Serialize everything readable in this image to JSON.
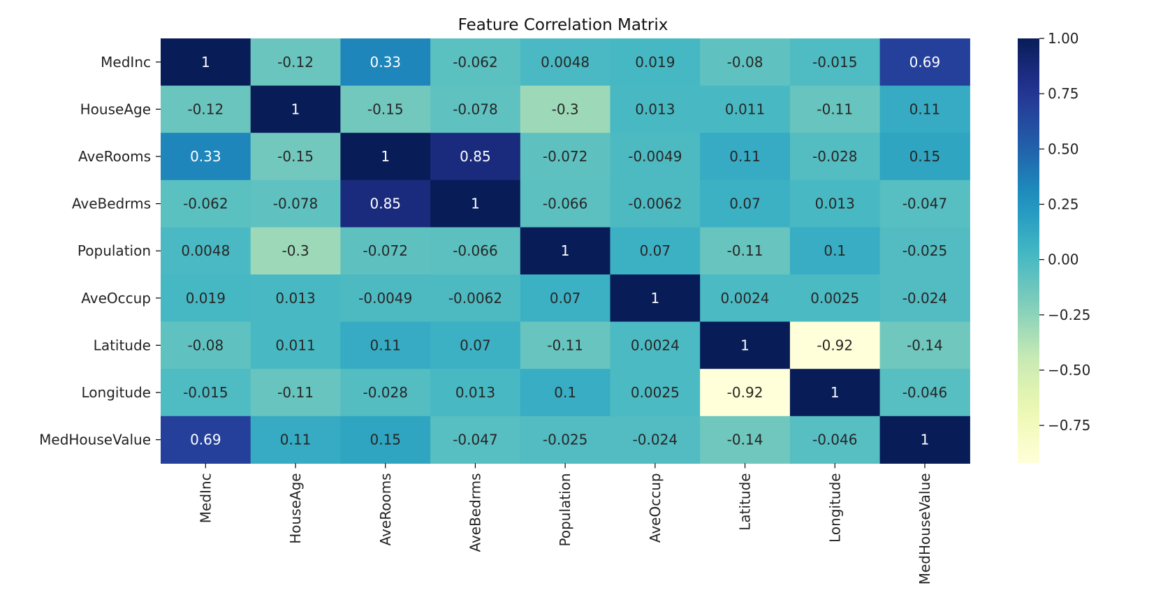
{
  "chart_data": {
    "type": "heatmap",
    "title": "Feature Correlation Matrix",
    "xlabel": "",
    "ylabel": "",
    "rows": [
      "MedInc",
      "HouseAge",
      "AveRooms",
      "AveBedrms",
      "Population",
      "AveOccup",
      "Latitude",
      "Longitude",
      "MedHouseValue"
    ],
    "columns": [
      "MedInc",
      "HouseAge",
      "AveRooms",
      "AveBedrms",
      "Population",
      "AveOccup",
      "Latitude",
      "Longitude",
      "MedHouseValue"
    ],
    "values": [
      [
        1,
        -0.12,
        0.33,
        -0.062,
        0.0048,
        0.019,
        -0.08,
        -0.015,
        0.69
      ],
      [
        -0.12,
        1,
        -0.15,
        -0.078,
        -0.3,
        0.013,
        0.011,
        -0.11,
        0.11
      ],
      [
        0.33,
        -0.15,
        1,
        0.85,
        -0.072,
        -0.0049,
        0.11,
        -0.028,
        0.15
      ],
      [
        -0.062,
        -0.078,
        0.85,
        1,
        -0.066,
        -0.0062,
        0.07,
        0.013,
        -0.047
      ],
      [
        0.0048,
        -0.3,
        -0.072,
        -0.066,
        1,
        0.07,
        -0.11,
        0.1,
        -0.025
      ],
      [
        0.019,
        0.013,
        -0.0049,
        -0.0062,
        0.07,
        1,
        0.0024,
        0.0025,
        -0.024
      ],
      [
        -0.08,
        0.011,
        0.11,
        0.07,
        -0.11,
        0.0024,
        1,
        -0.92,
        -0.14
      ],
      [
        -0.015,
        -0.11,
        -0.028,
        0.013,
        0.1,
        0.0025,
        -0.92,
        1,
        -0.046
      ],
      [
        0.69,
        0.11,
        0.15,
        -0.047,
        -0.025,
        -0.024,
        -0.14,
        -0.046,
        1
      ]
    ],
    "cell_labels": [
      [
        "1",
        "-0.12",
        "0.33",
        "-0.062",
        "0.0048",
        "0.019",
        "-0.08",
        "-0.015",
        "0.69"
      ],
      [
        "-0.12",
        "1",
        "-0.15",
        "-0.078",
        "-0.3",
        "0.013",
        "0.011",
        "-0.11",
        "0.11"
      ],
      [
        "0.33",
        "-0.15",
        "1",
        "0.85",
        "-0.072",
        "-0.0049",
        "0.11",
        "-0.028",
        "0.15"
      ],
      [
        "-0.062",
        "-0.078",
        "0.85",
        "1",
        "-0.066",
        "-0.0062",
        "0.07",
        "0.013",
        "-0.047"
      ],
      [
        "0.0048",
        "-0.3",
        "-0.072",
        "-0.066",
        "1",
        "0.07",
        "-0.11",
        "0.1",
        "-0.025"
      ],
      [
        "0.019",
        "0.013",
        "-0.0049",
        "-0.0062",
        "0.07",
        "1",
        "0.0024",
        "0.0025",
        "-0.024"
      ],
      [
        "-0.08",
        "0.011",
        "0.11",
        "0.07",
        "-0.11",
        "0.0024",
        "1",
        "-0.92",
        "-0.14"
      ],
      [
        "-0.015",
        "-0.11",
        "-0.028",
        "0.013",
        "0.1",
        "0.0025",
        "-0.92",
        "1",
        "-0.046"
      ],
      [
        "0.69",
        "0.11",
        "0.15",
        "-0.047",
        "-0.025",
        "-0.024",
        "-0.14",
        "-0.046",
        "1"
      ]
    ],
    "colormap": "YlGnBu",
    "color_range": [
      -0.92,
      1
    ],
    "colorbar_ticks": [
      1.0,
      0.75,
      0.5,
      0.25,
      0.0,
      -0.25,
      -0.5,
      -0.75
    ],
    "colorbar_tick_labels": [
      "1.00",
      "0.75",
      "0.50",
      "0.25",
      "0.00",
      "−0.25",
      "−0.50",
      "−0.75"
    ],
    "colorbar_placement": "right",
    "grid": false
  }
}
